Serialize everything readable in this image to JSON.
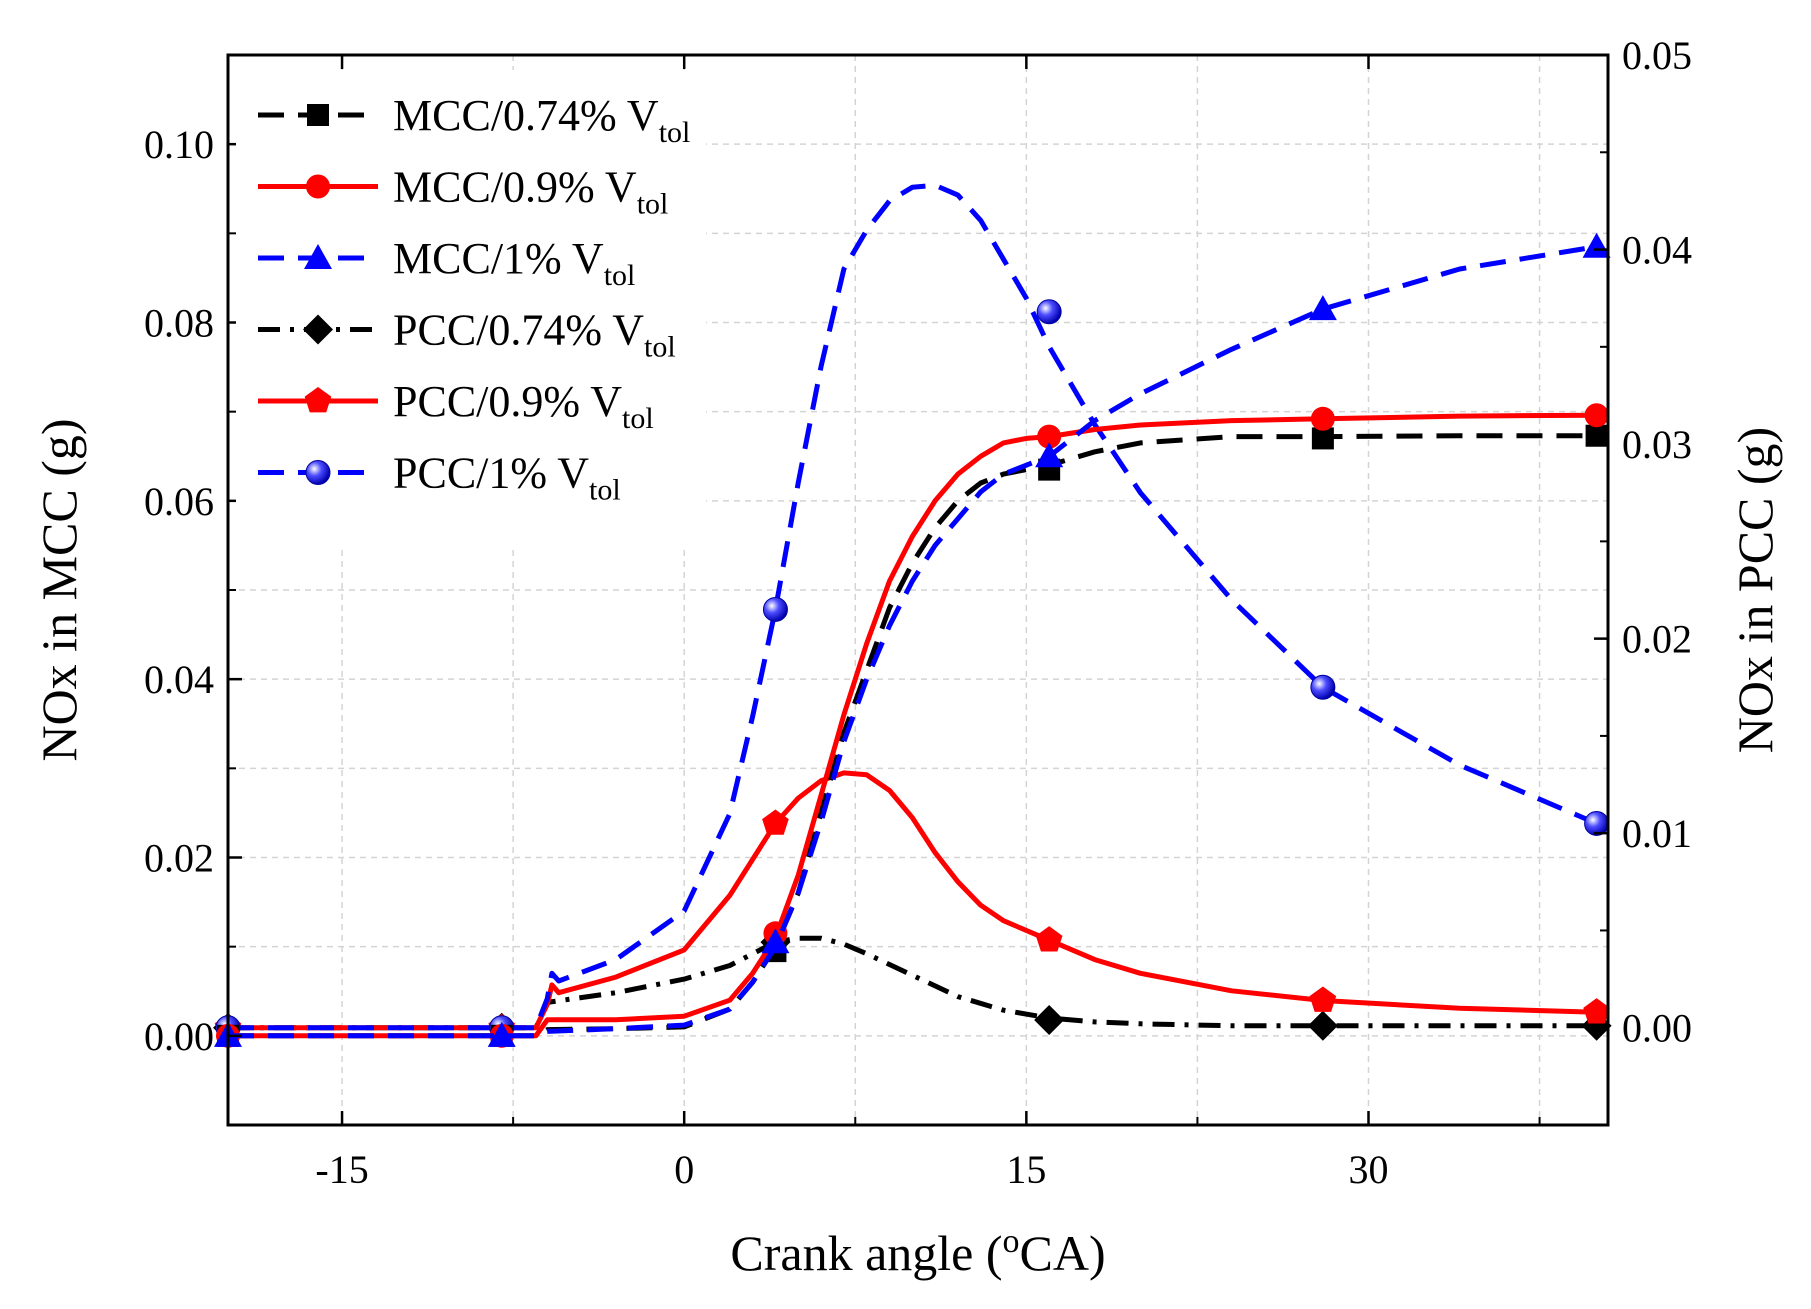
{
  "chart_data": {
    "type": "line",
    "xlabel_main": "Crank angle (",
    "xlabel_sup": "o",
    "xlabel_tail": "CA)",
    "ylabel_left": "NOx in MCC (g)",
    "ylabel_right": "NOx in PCC (g)",
    "xlim": [
      -20,
      40.5
    ],
    "ylim_left": [
      -0.01,
      0.11
    ],
    "ylim_right": [
      -0.005,
      0.05
    ],
    "x_ticks": [
      -15,
      0,
      15,
      30
    ],
    "x_tick_labels": [
      "-15",
      "0",
      "15",
      "30"
    ],
    "y_left_ticks": [
      0.0,
      0.02,
      0.04,
      0.06,
      0.08,
      0.1
    ],
    "y_left_tick_labels": [
      "0.00",
      "0.02",
      "0.04",
      "0.06",
      "0.08",
      "0.10"
    ],
    "y_right_ticks": [
      0.0,
      0.01,
      0.02,
      0.03,
      0.04,
      0.05
    ],
    "y_right_tick_labels": [
      "0.00",
      "0.01",
      "0.02",
      "0.03",
      "0.04",
      "0.05"
    ],
    "grid": true,
    "legend_position": "top-left",
    "series": [
      {
        "name": "MCC/0.74% V",
        "sub": "tol",
        "axis": "left",
        "color": "#000000",
        "dash": "dashed",
        "marker": "square",
        "curve_x": [
          -20,
          -8,
          -6.5,
          -6,
          -3,
          0,
          2,
          3,
          4,
          5,
          6,
          7,
          8,
          9,
          10,
          11,
          12,
          13,
          14,
          15,
          16,
          18,
          20,
          24,
          28,
          34,
          40
        ],
        "curve_y": [
          0.0,
          0.0,
          0.0,
          0.0007,
          0.0008,
          0.001,
          0.003,
          0.006,
          0.01,
          0.016,
          0.025,
          0.034,
          0.041,
          0.048,
          0.053,
          0.057,
          0.06,
          0.062,
          0.063,
          0.0635,
          0.064,
          0.0655,
          0.0665,
          0.0672,
          0.0672,
          0.0673,
          0.0673
        ],
        "marker_x": [
          -20,
          -8,
          4,
          16,
          28,
          40
        ],
        "marker_y": [
          0.0,
          0.0,
          0.0095,
          0.0635,
          0.067,
          0.0673
        ]
      },
      {
        "name": "MCC/0.9% V",
        "sub": "tol",
        "axis": "left",
        "color": "#ff0000",
        "dash": "solid",
        "marker": "circle",
        "curve_x": [
          -20,
          -8,
          -6.5,
          -6,
          -3,
          0,
          2,
          3,
          4,
          5,
          6,
          7,
          8,
          9,
          10,
          11,
          12,
          13,
          14,
          15,
          16,
          18,
          20,
          24,
          28,
          34,
          40
        ],
        "curve_y": [
          0.0,
          0.0,
          0.0,
          0.0018,
          0.0018,
          0.0022,
          0.004,
          0.007,
          0.011,
          0.018,
          0.027,
          0.036,
          0.044,
          0.051,
          0.056,
          0.06,
          0.063,
          0.065,
          0.0665,
          0.067,
          0.0672,
          0.068,
          0.0685,
          0.069,
          0.0692,
          0.0695,
          0.0696
        ],
        "marker_x": [
          -20,
          -8,
          4,
          16,
          28,
          40
        ],
        "marker_y": [
          0.0,
          0.0,
          0.0115,
          0.0672,
          0.0692,
          0.0696
        ]
      },
      {
        "name": "MCC/1% V",
        "sub": "tol",
        "axis": "left",
        "color": "#0000ff",
        "dash": "dashed",
        "marker": "triangle",
        "curve_x": [
          -20,
          -8,
          -6.5,
          -6,
          -3,
          0,
          2,
          3,
          4,
          5,
          6,
          7,
          8,
          9,
          10,
          11,
          12,
          13,
          14,
          15,
          16,
          18,
          20,
          24,
          28,
          34,
          40
        ],
        "curve_y": [
          0.0,
          0.0,
          0.0,
          0.0005,
          0.0008,
          0.0012,
          0.003,
          0.006,
          0.01,
          0.016,
          0.024,
          0.033,
          0.04,
          0.046,
          0.051,
          0.055,
          0.058,
          0.061,
          0.063,
          0.064,
          0.065,
          0.069,
          0.072,
          0.077,
          0.0815,
          0.086,
          0.0885
        ],
        "marker_x": [
          -20,
          -8,
          4,
          16,
          28,
          40
        ],
        "marker_y": [
          0.0,
          0.0,
          0.0105,
          0.065,
          0.0815,
          0.0885
        ]
      },
      {
        "name": "PCC/0.74% V",
        "sub": "tol",
        "axis": "right",
        "color": "#000000",
        "dash": "dashdot",
        "marker": "diamond",
        "curve_x": [
          -20,
          -8,
          -6.5,
          -6,
          -3,
          0,
          2,
          3,
          4,
          5,
          6,
          7,
          8,
          10,
          12,
          14,
          16,
          18,
          20,
          24,
          28,
          34,
          40
        ],
        "curve_y": [
          0.0,
          0.0,
          0.0,
          0.0013,
          0.0018,
          0.0025,
          0.0032,
          0.0038,
          0.0044,
          0.0046,
          0.0046,
          0.0043,
          0.0038,
          0.0027,
          0.0016,
          0.0009,
          0.0005,
          0.0003,
          0.0002,
          0.0001,
          0.0001,
          0.0001,
          0.0001
        ],
        "marker_x": [
          -20,
          -8,
          4,
          16,
          28,
          40
        ],
        "marker_y": [
          0.0,
          0.0,
          0.0044,
          0.0004,
          0.0001,
          0.0001
        ]
      },
      {
        "name": "PCC/0.9% V",
        "sub": "tol",
        "axis": "right",
        "color": "#ff0000",
        "dash": "solid",
        "marker": "pentagon",
        "curve_x": [
          -20,
          -8,
          -6.5,
          -6,
          -5.8,
          -5.5,
          -3,
          0,
          2,
          4,
          5,
          6,
          7,
          8,
          9,
          10,
          11,
          12,
          13,
          14,
          16,
          18,
          20,
          24,
          28,
          34,
          40
        ],
        "curve_y": [
          0.0,
          0.0,
          0.0,
          0.0012,
          0.0022,
          0.0018,
          0.0026,
          0.004,
          0.0068,
          0.0105,
          0.0118,
          0.0127,
          0.0131,
          0.013,
          0.0122,
          0.0108,
          0.009,
          0.0075,
          0.0063,
          0.0055,
          0.0045,
          0.0035,
          0.0028,
          0.0019,
          0.0014,
          0.001,
          0.0008
        ],
        "marker_x": [
          -20,
          -8,
          4,
          16,
          28,
          40
        ],
        "marker_y": [
          0.0,
          0.0,
          0.0105,
          0.0045,
          0.0014,
          0.0008
        ]
      },
      {
        "name": "PCC/1% V",
        "sub": "tol",
        "axis": "right",
        "color": "#0000ff",
        "dash": "dashed",
        "marker": "sphere",
        "curve_x": [
          -20,
          -8,
          -6.5,
          -6,
          -5.8,
          -5.5,
          -3,
          0,
          2,
          3,
          4,
          5,
          6,
          7,
          8,
          9,
          10,
          11,
          12,
          13,
          14,
          15,
          16,
          18,
          20,
          24,
          28,
          34,
          40
        ],
        "curve_y": [
          0.0,
          0.0,
          0.0,
          0.0015,
          0.0028,
          0.0024,
          0.0035,
          0.006,
          0.011,
          0.016,
          0.0215,
          0.028,
          0.034,
          0.039,
          0.041,
          0.0425,
          0.0432,
          0.0433,
          0.0428,
          0.0415,
          0.0395,
          0.0375,
          0.035,
          0.031,
          0.0275,
          0.022,
          0.0175,
          0.0135,
          0.0105
        ],
        "marker_x": [
          -20,
          -8,
          4,
          16,
          28,
          40
        ],
        "marker_y": [
          0.0,
          0.0,
          0.0215,
          0.0368,
          0.0175,
          0.0105
        ]
      }
    ]
  }
}
